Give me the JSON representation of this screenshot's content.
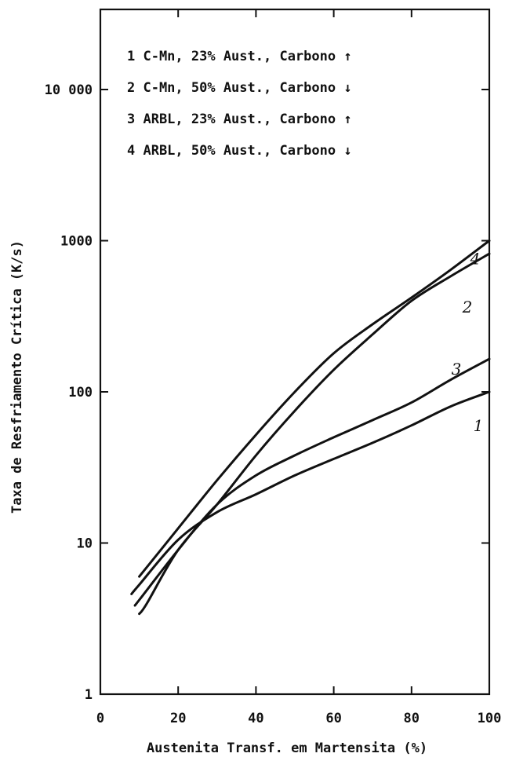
{
  "chart_data": {
    "type": "line",
    "xlabel": "Austenita Transf. em Martensita (%)",
    "ylabel": "Taxa de Resfriamento Crítica (K/s)",
    "xlim": [
      0,
      100
    ],
    "ylim": [
      1,
      20000
    ],
    "y_scale": "log",
    "grid": false,
    "x_ticks": [
      0,
      20,
      40,
      60,
      80,
      100
    ],
    "x_tick_labels": [
      "0",
      "20",
      "40",
      "60",
      "80",
      "100"
    ],
    "y_ticks": [
      1,
      10,
      100,
      1000,
      10000
    ],
    "y_tick_labels": [
      "1",
      "10",
      "100",
      "1000",
      "10 000"
    ],
    "legend": {
      "placement": "top",
      "entries": [
        "1 C-Mn, 23% Aust., Carbono ↑",
        "2 C-Mn, 50% Aust., Carbono ↓",
        "3 ARBL, 23% Aust., Carbono ↑",
        "4 ARBL, 50% Aust., Carbono ↓"
      ]
    },
    "series": [
      {
        "name": "1",
        "x": [
          8,
          10,
          20,
          30,
          40,
          50,
          60,
          70,
          80,
          90,
          100
        ],
        "y": [
          4.6,
          5.3,
          10.5,
          16,
          21,
          28,
          36,
          46,
          60,
          80,
          100
        ]
      },
      {
        "name": "2",
        "x": [
          10,
          12,
          20,
          30,
          40,
          50,
          60,
          70,
          80,
          90,
          100
        ],
        "y": [
          3.4,
          4,
          9,
          18,
          38,
          75,
          140,
          240,
          400,
          580,
          820
        ]
      },
      {
        "name": "3",
        "x": [
          9,
          10,
          20,
          30,
          40,
          50,
          60,
          70,
          80,
          90,
          100
        ],
        "y": [
          3.9,
          4.2,
          9,
          18,
          28,
          38,
          50,
          65,
          85,
          120,
          165
        ]
      },
      {
        "name": "4",
        "x": [
          10,
          20,
          30,
          40,
          50,
          60,
          70,
          80,
          90,
          100
        ],
        "y": [
          6,
          12.5,
          26,
          52,
          100,
          180,
          280,
          420,
          640,
          1000
        ]
      }
    ]
  }
}
